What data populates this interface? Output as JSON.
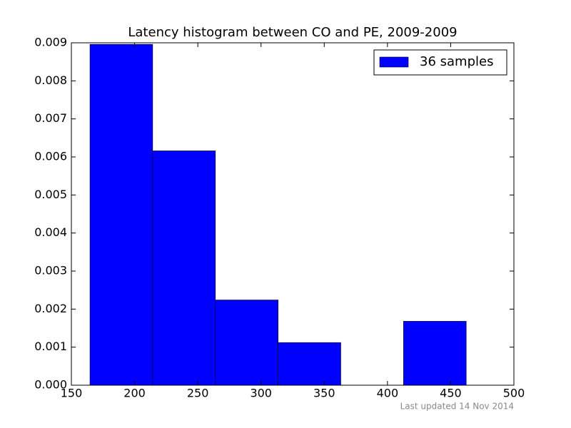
{
  "chart_data": {
    "type": "histogram",
    "title": "Latency histogram between CO and PE, 2009-2009",
    "bins": [
      164.7,
      214.3,
      263.9,
      313.5,
      363.1,
      412.7,
      462.3
    ],
    "series": [
      {
        "name": "36 samples",
        "color": "#0000ff",
        "values": [
          0.00896,
          0.00616,
          0.00224,
          0.00112,
          0,
          0.00168
        ]
      }
    ],
    "xlim": [
      150,
      500
    ],
    "xticks": [
      150,
      200,
      250,
      300,
      350,
      400,
      450,
      500
    ],
    "ylim": [
      0,
      0.009
    ],
    "yticks": [
      {
        "value": 0,
        "label": "0.000"
      },
      {
        "value": 0.001,
        "label": "0.001"
      },
      {
        "value": 0.002,
        "label": "0.002"
      },
      {
        "value": 0.003,
        "label": "0.003"
      },
      {
        "value": 0.004,
        "label": "0.004"
      },
      {
        "value": 0.005,
        "label": "0.005"
      },
      {
        "value": 0.006,
        "label": "0.006"
      },
      {
        "value": 0.007,
        "label": "0.007"
      },
      {
        "value": 0.008,
        "label": "0.008"
      },
      {
        "value": 0.009,
        "label": "0.009"
      }
    ],
    "legend": "upper right",
    "footnote": "Last updated 14 Nov 2014"
  }
}
